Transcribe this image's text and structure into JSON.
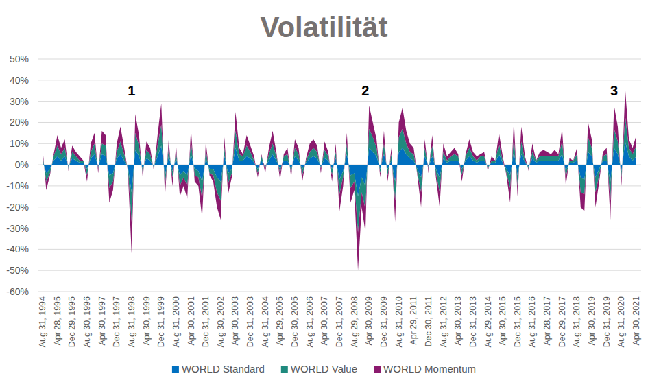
{
  "chart_data": {
    "type": "area",
    "title": "Volatilität",
    "stacked": true,
    "grid": true,
    "legend": "bottom",
    "categories": [
      "Aug 31, 1994",
      null,
      null,
      null,
      "Apr 28, 1995",
      null,
      null,
      null,
      "Dec 29, 1995",
      null,
      null,
      null,
      "Aug 30, 1996",
      null,
      null,
      null,
      "Apr 30, 1997",
      null,
      null,
      null,
      "Dec 31, 1997",
      null,
      null,
      null,
      "Aug 31, 1998",
      null,
      null,
      null,
      "Apr 30, 1999",
      null,
      null,
      null,
      "Dec 31, 1999",
      null,
      null,
      null,
      "Aug 31, 2000",
      null,
      null,
      null,
      "Apr 30, 2001",
      null,
      null,
      null,
      "Dec 31, 2001",
      null,
      null,
      null,
      "Aug 30, 2002",
      null,
      null,
      null,
      "Apr 30, 2003",
      null,
      null,
      null,
      "Dec 31, 2003",
      null,
      null,
      null,
      "Aug 31, 2004",
      null,
      null,
      null,
      "Apr 29, 2005",
      null,
      null,
      null,
      "Dec 30, 2005",
      null,
      null,
      null,
      "Aug 31, 2006",
      null,
      null,
      null,
      "Apr 30, 2007",
      null,
      null,
      null,
      "Dec 31, 2007",
      null,
      null,
      null,
      "Aug 29, 2008",
      null,
      null,
      null,
      "Apr 30, 2009",
      null,
      null,
      null,
      "Dec 31, 2009",
      null,
      null,
      null,
      "Aug 31, 2010",
      null,
      null,
      null,
      "Apr 29, 2011",
      null,
      null,
      null,
      "Dec 30, 2011",
      null,
      null,
      null,
      "Aug 31, 2012",
      null,
      null,
      null,
      "Apr 30, 2013",
      null,
      null,
      null,
      "Dec 31, 2013",
      null,
      null,
      null,
      "Aug 29, 2014",
      null,
      null,
      null,
      "Apr 30, 2015",
      null,
      null,
      null,
      "Dec 31, 2015",
      null,
      null,
      null,
      "Aug 31, 2016",
      null,
      null,
      null,
      "Apr 28, 2017",
      null,
      null,
      null,
      "Dec 29, 2017",
      null,
      null,
      null,
      "Aug 31, 2018",
      null,
      null,
      null,
      "Apr 30, 2019",
      null,
      null,
      null,
      "Dec 31, 2019",
      null,
      null,
      null,
      "Aug 31, 2020",
      null,
      null,
      null,
      "Apr 30, 2021"
    ],
    "series": [
      {
        "name": "WORLD Standard",
        "color": "#0070c0",
        "values": [
          2,
          -4,
          -2,
          2,
          4,
          2,
          4,
          -1,
          3,
          2,
          1,
          1,
          -2,
          3,
          5,
          -1,
          5,
          4,
          -5,
          -4,
          3,
          5,
          2,
          -1,
          -13,
          7,
          4,
          -2,
          3,
          2,
          -1,
          4,
          9,
          -5,
          4,
          -3,
          3,
          -5,
          -3,
          -5,
          5,
          -2,
          -3,
          -8,
          3,
          -2,
          -2,
          -6,
          -8,
          4,
          -4,
          -2,
          8,
          2,
          2,
          4,
          3,
          1,
          -2,
          2,
          -1,
          2,
          5,
          2,
          -2,
          2,
          2,
          -2,
          4,
          2,
          -2,
          1,
          3,
          4,
          3,
          -1,
          3,
          2,
          -2,
          3,
          -7,
          -3,
          5,
          -5,
          -4,
          -15,
          -6,
          -10,
          8,
          6,
          4,
          -2,
          5,
          -2,
          2,
          -8,
          6,
          8,
          5,
          3,
          2,
          -2,
          -6,
          4,
          -1,
          4,
          -2,
          -6,
          3,
          1,
          2,
          2,
          2,
          -2,
          2,
          4,
          2,
          1,
          2,
          2,
          -1,
          1,
          1,
          5,
          1,
          -2,
          -5,
          6,
          -5,
          5,
          1,
          -1,
          3,
          1,
          2,
          2,
          2,
          2,
          2,
          2,
          5,
          -3,
          1,
          1,
          2,
          -6,
          -7,
          6,
          4,
          -6,
          -2,
          2,
          2,
          -8,
          8,
          5,
          -3,
          11,
          4,
          2,
          4
        ]
      },
      {
        "name": "WORLD Value",
        "color": "#1f8a7e",
        "values": [
          3,
          -4,
          -2,
          2,
          5,
          3,
          4,
          -1,
          3,
          2,
          1,
          1,
          -3,
          3,
          5,
          -1,
          5,
          5,
          -6,
          -4,
          3,
          6,
          3,
          -1,
          -14,
          8,
          5,
          -2,
          4,
          3,
          -1,
          5,
          10,
          -5,
          4,
          -3,
          3,
          -5,
          -3,
          -5,
          6,
          -3,
          -3,
          -8,
          4,
          -2,
          -3,
          -7,
          -9,
          4,
          -5,
          -2,
          8,
          3,
          2,
          5,
          3,
          1,
          -2,
          2,
          -1,
          3,
          5,
          2,
          -2,
          2,
          3,
          -2,
          4,
          3,
          -3,
          1,
          3,
          4,
          3,
          -1,
          4,
          2,
          -3,
          3,
          -7,
          -3,
          5,
          -6,
          -4,
          -17,
          -7,
          -11,
          9,
          7,
          4,
          -2,
          5,
          -3,
          3,
          -9,
          7,
          9,
          5,
          3,
          3,
          -2,
          -7,
          4,
          -1,
          5,
          -2,
          -7,
          3,
          1,
          2,
          3,
          2,
          -3,
          2,
          4,
          2,
          1,
          2,
          2,
          -1,
          1,
          1,
          5,
          1,
          -2,
          -6,
          7,
          -5,
          6,
          1,
          -1,
          3,
          1,
          2,
          2,
          2,
          2,
          2,
          2,
          6,
          -3,
          1,
          1,
          3,
          -7,
          -7,
          7,
          4,
          -7,
          -3,
          2,
          3,
          -9,
          9,
          6,
          -3,
          12,
          4,
          3,
          5
        ]
      },
      {
        "name": "WORLD Momentum",
        "color": "#8b1a6e",
        "values": [
          3,
          -4,
          -1,
          1,
          5,
          3,
          4,
          -1,
          3,
          2,
          2,
          0,
          -3,
          4,
          5,
          -2,
          6,
          5,
          -7,
          -4,
          4,
          7,
          3,
          -1,
          -15,
          9,
          5,
          -2,
          4,
          3,
          -1,
          5,
          10,
          -5,
          4,
          -4,
          3,
          -5,
          -4,
          -6,
          6,
          -3,
          -4,
          -9,
          4,
          -1,
          -3,
          -7,
          -9,
          5,
          -5,
          -2,
          9,
          3,
          1,
          5,
          3,
          2,
          -2,
          1,
          -2,
          3,
          6,
          2,
          -3,
          1,
          3,
          -2,
          4,
          3,
          -3,
          1,
          4,
          4,
          3,
          -2,
          4,
          2,
          -3,
          4,
          -8,
          -4,
          5,
          -7,
          -4,
          -18,
          -7,
          -11,
          11,
          7,
          4,
          -2,
          6,
          -3,
          3,
          -10,
          7,
          10,
          6,
          4,
          3,
          -1,
          -7,
          4,
          -2,
          5,
          -2,
          -7,
          4,
          2,
          2,
          3,
          1,
          -3,
          1,
          4,
          2,
          2,
          1,
          2,
          -1,
          2,
          0,
          5,
          2,
          -1,
          -7,
          8,
          -5,
          7,
          2,
          -1,
          4,
          0,
          2,
          3,
          2,
          1,
          3,
          1,
          6,
          -4,
          1,
          0,
          3,
          -7,
          -8,
          7,
          4,
          -7,
          -3,
          2,
          3,
          -9,
          11,
          7,
          -4,
          13,
          4,
          3,
          5
        ]
      }
    ],
    "ylim": [
      -60,
      50
    ],
    "yticks": [
      {
        "value": -60,
        "label": "-60%"
      },
      {
        "value": -50,
        "label": "-50%"
      },
      {
        "value": -40,
        "label": "-40%"
      },
      {
        "value": -30,
        "label": "-30%"
      },
      {
        "value": -20,
        "label": "-20%"
      },
      {
        "value": -10,
        "label": "-10%"
      },
      {
        "value": 0,
        "label": "0%"
      },
      {
        "value": 10,
        "label": "10%"
      },
      {
        "value": 20,
        "label": "20%"
      },
      {
        "value": 30,
        "label": "30%"
      },
      {
        "value": 40,
        "label": "40%"
      },
      {
        "value": 50,
        "label": "50%"
      }
    ],
    "annotations": [
      {
        "text": "1",
        "index": 24
      },
      {
        "text": "2",
        "index": 87
      },
      {
        "text": "3",
        "index": 154
      }
    ]
  }
}
